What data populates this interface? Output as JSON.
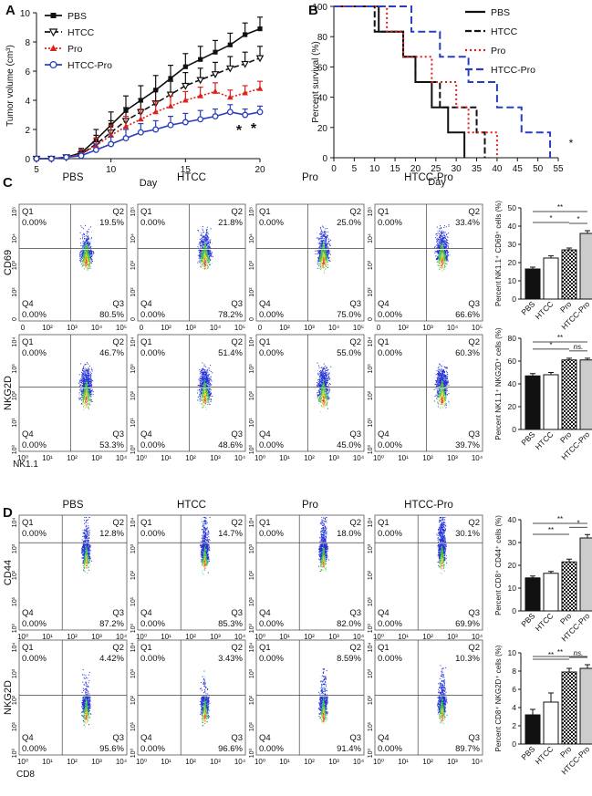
{
  "panel_labels": [
    "A",
    "B",
    "C",
    "D"
  ],
  "conditions": [
    "PBS",
    "HTCC",
    "Pro",
    "HTCC-Pro"
  ],
  "quadrant_names": [
    "Q1",
    "Q2",
    "Q3",
    "Q4"
  ],
  "chart_data": [
    {
      "type": "line",
      "id": "A",
      "title": "",
      "xlabel": "Day",
      "ylabel": "Tumor volume (cm³)",
      "xlim": [
        5,
        20
      ],
      "ylim": [
        0,
        10
      ],
      "xticks": [
        "5",
        "10",
        "15",
        "20"
      ],
      "yticks": [
        "0",
        "2",
        "4",
        "6",
        "8",
        "10"
      ],
      "x": [
        5,
        6,
        7,
        8,
        9,
        10,
        11,
        12,
        13,
        14,
        15,
        16,
        17,
        18,
        19,
        20
      ],
      "series": [
        {
          "name": "PBS",
          "color": "#111111",
          "marker": "square",
          "dash": "",
          "values": [
            0,
            0,
            0.1,
            0.4,
            1.3,
            2.3,
            3.3,
            4.0,
            4.7,
            5.5,
            6.3,
            6.8,
            7.3,
            7.8,
            8.5,
            8.9
          ],
          "err": [
            0,
            0,
            0.1,
            0.3,
            0.7,
            0.9,
            1.0,
            1.0,
            1.0,
            0.9,
            0.9,
            0.9,
            0.8,
            0.8,
            0.8,
            0.8
          ]
        },
        {
          "name": "HTCC",
          "color": "#111111",
          "marker": "tri-down",
          "dash": "6,3",
          "values": [
            0,
            0,
            0.1,
            0.3,
            1.0,
            1.8,
            2.6,
            3.2,
            3.8,
            4.4,
            5.0,
            5.4,
            5.8,
            6.2,
            6.5,
            6.9
          ],
          "err": [
            0,
            0,
            0.1,
            0.3,
            0.6,
            0.8,
            0.9,
            0.9,
            0.9,
            0.9,
            0.9,
            0.8,
            0.8,
            0.8,
            0.8,
            0.8
          ]
        },
        {
          "name": "Pro",
          "color": "#e0201b",
          "marker": "tri-up",
          "dash": "2,2",
          "values": [
            0,
            0,
            0.1,
            0.3,
            0.9,
            1.6,
            2.2,
            2.7,
            3.2,
            3.6,
            4.0,
            4.3,
            4.6,
            4.2,
            4.5,
            4.8
          ],
          "err": [
            0,
            0,
            0.1,
            0.3,
            0.5,
            0.7,
            0.7,
            0.7,
            0.7,
            0.7,
            0.6,
            0.6,
            0.6,
            0.5,
            0.5,
            0.5
          ]
        },
        {
          "name": "HTCC-Pro",
          "color": "#2a3fbf",
          "marker": "circle",
          "dash": "",
          "values": [
            0,
            0,
            0.1,
            0.2,
            0.6,
            1.0,
            1.4,
            1.8,
            2.0,
            2.3,
            2.5,
            2.7,
            2.9,
            3.2,
            3.0,
            3.2
          ],
          "err": [
            0,
            0,
            0.1,
            0.2,
            0.4,
            0.5,
            0.6,
            0.6,
            0.6,
            0.6,
            0.6,
            0.6,
            0.5,
            0.5,
            0.4,
            0.4
          ]
        }
      ],
      "annotations": [
        "*",
        "*"
      ]
    },
    {
      "type": "line",
      "id": "B",
      "title": "",
      "xlabel": "Day",
      "ylabel": "Percent survival (%)",
      "xlim": [
        0,
        55
      ],
      "ylim": [
        0,
        100
      ],
      "xticks": [
        "0",
        "5",
        "10",
        "15",
        "20",
        "25",
        "30",
        "35",
        "40",
        "45",
        "50",
        "55"
      ],
      "yticks": [
        "0",
        "20",
        "40",
        "60",
        "80",
        "100"
      ],
      "series": [
        {
          "name": "PBS",
          "color": "#111111",
          "dash": "",
          "x": [
            0,
            11,
            11,
            17,
            17,
            20,
            20,
            24,
            24,
            28,
            28,
            30,
            30,
            32,
            32
          ],
          "values": [
            100,
            100,
            83.3,
            83.3,
            66.7,
            66.7,
            50,
            50,
            33.3,
            33.3,
            16.7,
            16.7,
            16.7,
            16.7,
            0
          ]
        },
        {
          "name": "HTCC",
          "color": "#111111",
          "dash": "7,3",
          "x": [
            0,
            10,
            10,
            17,
            17,
            20,
            20,
            24,
            24,
            26,
            26,
            35,
            35,
            37,
            37
          ],
          "values": [
            100,
            100,
            83.3,
            83.3,
            66.7,
            66.7,
            50,
            50,
            50,
            50,
            33.3,
            33.3,
            16.7,
            16.7,
            0
          ]
        },
        {
          "name": "Pro",
          "color": "#e0201b",
          "dash": "2,3",
          "x": [
            0,
            13,
            13,
            17,
            17,
            24,
            24,
            30,
            30,
            33,
            33,
            36,
            36,
            40,
            40
          ],
          "values": [
            100,
            100,
            83.3,
            83.3,
            66.7,
            66.7,
            50,
            50,
            33.3,
            33.3,
            16.7,
            16.7,
            16.7,
            16.7,
            0
          ]
        },
        {
          "name": "HTCC-Pro",
          "color": "#2a3fbf",
          "dash": "8,4",
          "x": [
            0,
            19,
            19,
            26,
            26,
            33,
            33,
            40,
            40,
            46,
            46,
            50,
            50,
            53,
            53
          ],
          "values": [
            100,
            100,
            83.3,
            83.3,
            66.7,
            66.7,
            50,
            50,
            33.3,
            33.3,
            16.7,
            16.7,
            16.7,
            16.7,
            0
          ]
        }
      ],
      "annotations": [
        "*"
      ]
    },
    {
      "type": "scatter",
      "id": "C-flow",
      "xlabel": "NK1.1",
      "row_ylabels": [
        "CD69",
        "NKG2D"
      ],
      "axis_ticks": [
        "0",
        "10²",
        "10³",
        "10⁴",
        "10⁵"
      ],
      "axis_ticks_alt": [
        "10⁰",
        "10¹",
        "10²",
        "10³",
        "10⁴"
      ],
      "rows": [
        {
          "marker": "CD69",
          "panels": [
            {
              "group": "PBS",
              "Q1": "0.00%",
              "Q2": "19.5%",
              "Q3": "80.5%",
              "Q4": "0.00%"
            },
            {
              "group": "HTCC",
              "Q1": "0.00%",
              "Q2": "21.8%",
              "Q3": "78.2%",
              "Q4": "0.00%"
            },
            {
              "group": "Pro",
              "Q1": "0.00%",
              "Q2": "25.0%",
              "Q3": "75.0%",
              "Q4": "0.00%"
            },
            {
              "group": "HTCC-Pro",
              "Q1": "0.00%",
              "Q2": "33.4%",
              "Q3": "66.6%",
              "Q4": "0.00%"
            }
          ]
        },
        {
          "marker": "NKG2D",
          "panels": [
            {
              "group": "PBS",
              "Q1": "0.00%",
              "Q2": "46.7%",
              "Q3": "53.3%",
              "Q4": "0.00%"
            },
            {
              "group": "HTCC",
              "Q1": "0.00%",
              "Q2": "51.4%",
              "Q3": "48.6%",
              "Q4": "0.00%"
            },
            {
              "group": "Pro",
              "Q1": "0.00%",
              "Q2": "55.0%",
              "Q3": "45.0%",
              "Q4": "0.00%"
            },
            {
              "group": "HTCC-Pro",
              "Q1": "0.00%",
              "Q2": "60.3%",
              "Q3": "39.7%",
              "Q4": "0.00%"
            }
          ]
        }
      ]
    },
    {
      "type": "bar",
      "id": "C-bar-1",
      "categories": [
        "PBS",
        "HTCC",
        "Pro",
        "HTCC-Pro"
      ],
      "values": [
        16.5,
        22.5,
        27,
        36
      ],
      "err": [
        1,
        1.2,
        1,
        1.5
      ],
      "ylabel": "Percent NK1.1⁺ CD69⁺ cells (%)",
      "ylim": [
        0,
        50
      ],
      "yticks": [
        "0",
        "10",
        "20",
        "30",
        "40",
        "50"
      ],
      "significance": [
        {
          "from": 0,
          "to": 3,
          "label": "**"
        },
        {
          "from": 0,
          "to": 2,
          "label": "*"
        },
        {
          "from": 2,
          "to": 3,
          "label": "*"
        }
      ]
    },
    {
      "type": "bar",
      "id": "C-bar-2",
      "categories": [
        "PBS",
        "HTCC",
        "Pro",
        "HTCC-Pro"
      ],
      "values": [
        47,
        48,
        61,
        61
      ],
      "err": [
        2,
        2,
        1.5,
        1.5
      ],
      "ylabel": "Percent NK1.1⁺ NKG2D⁺ cells (%)",
      "ylim": [
        0,
        80
      ],
      "yticks": [
        "0",
        "20",
        "40",
        "60",
        "80"
      ],
      "significance": [
        {
          "from": 0,
          "to": 3,
          "label": "**"
        },
        {
          "from": 0,
          "to": 2,
          "label": "*"
        },
        {
          "from": 2,
          "to": 3,
          "label": "ns."
        }
      ]
    },
    {
      "type": "scatter",
      "id": "D-flow",
      "xlabel": "CD8",
      "row_ylabels": [
        "CD44",
        "NKG2D"
      ],
      "axis_ticks": [
        "10⁰",
        "10¹",
        "10²",
        "10³",
        "10⁴"
      ],
      "rows": [
        {
          "marker": "CD44",
          "panels": [
            {
              "group": "PBS",
              "Q1": "0.00%",
              "Q2": "12.8%",
              "Q3": "87.2%",
              "Q4": "0.00%"
            },
            {
              "group": "HTCC",
              "Q1": "0.00%",
              "Q2": "14.7%",
              "Q3": "85.3%",
              "Q4": "0.00%"
            },
            {
              "group": "Pro",
              "Q1": "0.00%",
              "Q2": "18.0%",
              "Q3": "82.0%",
              "Q4": "0.00%"
            },
            {
              "group": "HTCC-Pro",
              "Q1": "0.00%",
              "Q2": "30.1%",
              "Q3": "69.9%",
              "Q4": "0.00%"
            }
          ]
        },
        {
          "marker": "NKG2D",
          "panels": [
            {
              "group": "PBS",
              "Q1": "0.00%",
              "Q2": "4.42%",
              "Q3": "95.6%",
              "Q4": "0.00%"
            },
            {
              "group": "HTCC",
              "Q1": "0.00%",
              "Q2": "3.43%",
              "Q3": "96.6%",
              "Q4": "0.00%"
            },
            {
              "group": "Pro",
              "Q1": "0.00%",
              "Q2": "8.59%",
              "Q3": "91.4%",
              "Q4": "0.00%"
            },
            {
              "group": "HTCC-Pro",
              "Q1": "0.00%",
              "Q2": "10.3%",
              "Q3": "89.7%",
              "Q4": "0.00%"
            }
          ]
        }
      ]
    },
    {
      "type": "bar",
      "id": "D-bar-1",
      "categories": [
        "PBS",
        "HTCC",
        "Pro",
        "HTCC-Pro"
      ],
      "values": [
        14.5,
        16.5,
        21.5,
        32
      ],
      "err": [
        0.8,
        0.8,
        1.2,
        1.5
      ],
      "ylabel": "Percent CD8⁺ CD44⁺ cells (%)",
      "ylim": [
        0,
        40
      ],
      "yticks": [
        "0",
        "10",
        "20",
        "30",
        "40"
      ],
      "significance": [
        {
          "from": 0,
          "to": 3,
          "label": "**"
        },
        {
          "from": 0,
          "to": 2,
          "label": "**"
        },
        {
          "from": 2,
          "to": 3,
          "label": "*"
        }
      ]
    },
    {
      "type": "bar",
      "id": "D-bar-2",
      "categories": [
        "PBS",
        "HTCC",
        "Pro",
        "HTCC-Pro"
      ],
      "values": [
        3.2,
        4.6,
        7.9,
        8.3
      ],
      "err": [
        0.6,
        1,
        0.4,
        0.4
      ],
      "ylabel": "Percent CD8⁺ NKG2D⁺ cells (%)",
      "ylim": [
        0,
        10
      ],
      "yticks": [
        "0",
        "2",
        "4",
        "6",
        "8",
        "10"
      ],
      "significance": [
        {
          "from": 0,
          "to": 3,
          "label": "**"
        },
        {
          "from": 0,
          "to": 2,
          "label": "**"
        },
        {
          "from": 2,
          "to": 3,
          "label": "ns."
        }
      ]
    }
  ]
}
